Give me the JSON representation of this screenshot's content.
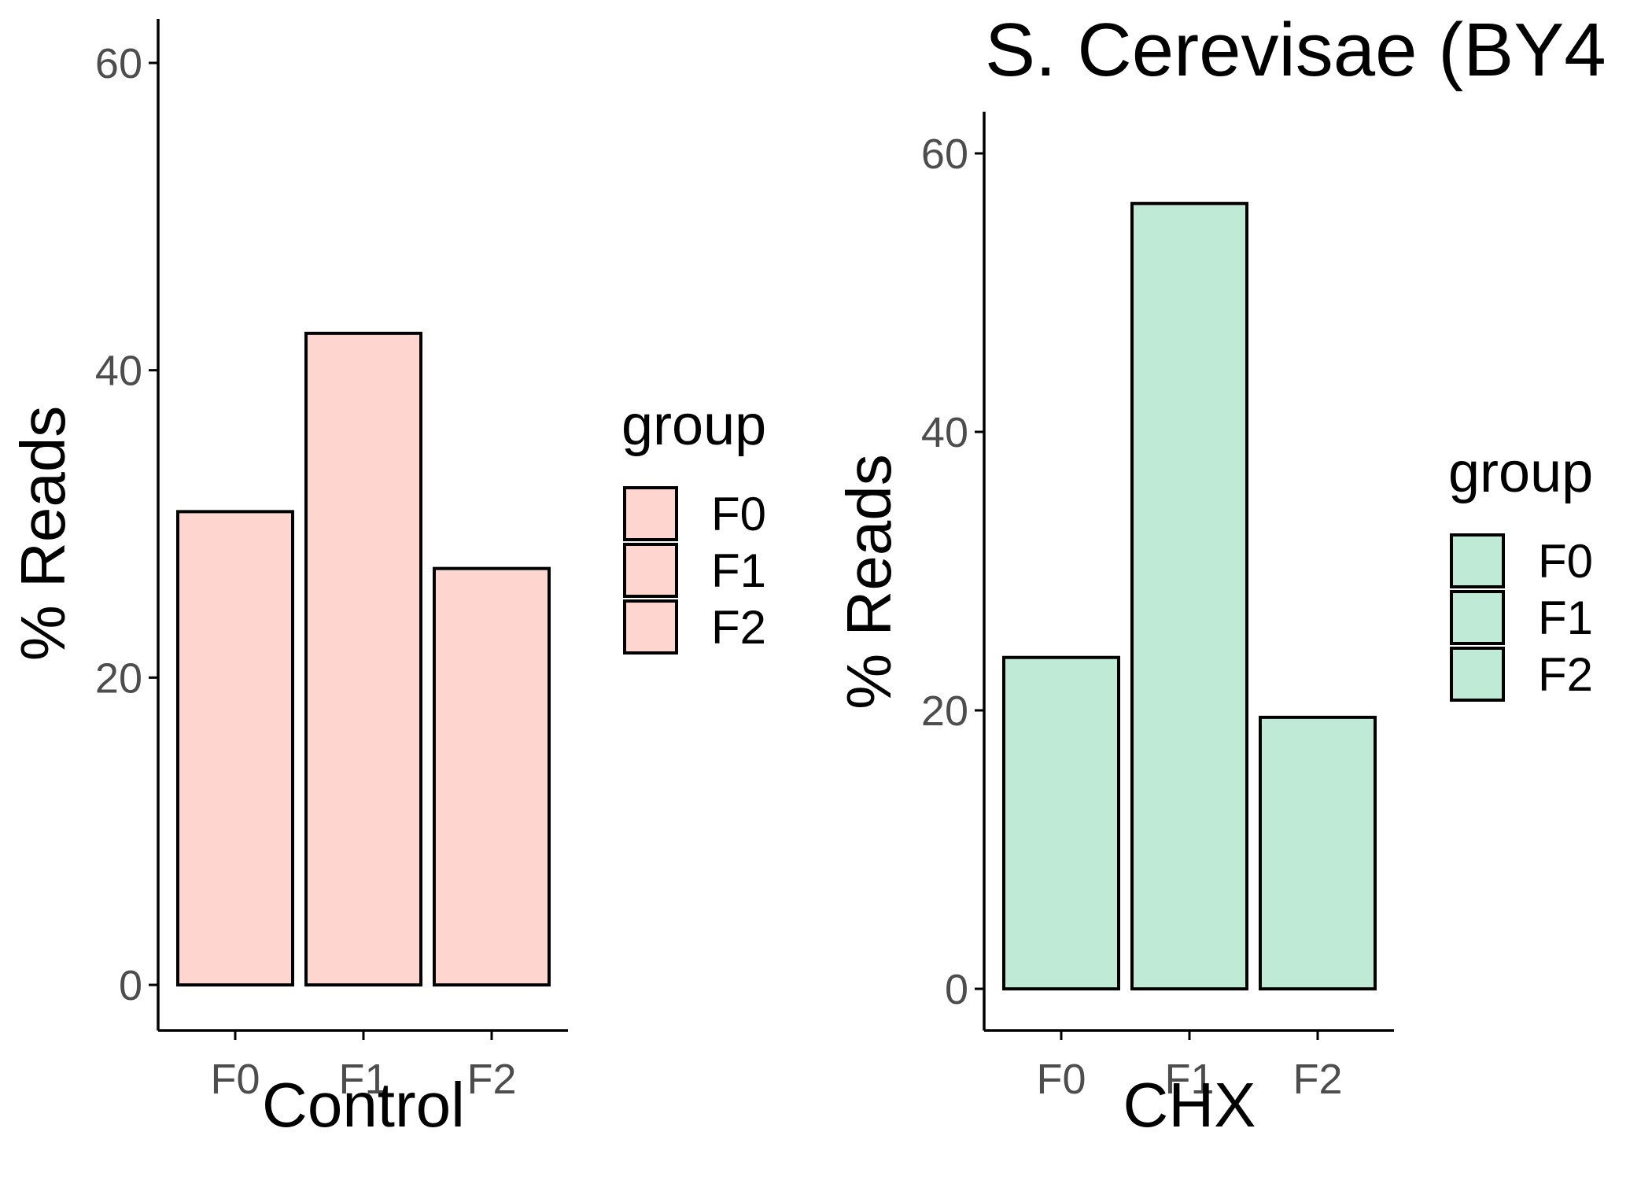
{
  "figure": {
    "title": "S. Cerevisae (BY4"
  },
  "chart_data": [
    {
      "type": "bar",
      "title": "",
      "xlabel": "Control",
      "ylabel": "% Reads",
      "categories": [
        "F0",
        "F1",
        "F2"
      ],
      "values": [
        30.8,
        42.4,
        27.1
      ],
      "ylim": [
        0,
        60
      ],
      "yticks": [
        "0",
        "20",
        "40",
        "60"
      ],
      "fill_color": "#ffd6cf",
      "grid": false,
      "legend": {
        "title": "group",
        "entries": [
          "F0",
          "F1",
          "F2"
        ],
        "placement": "right"
      }
    },
    {
      "type": "bar",
      "title": "",
      "xlabel": "CHX",
      "ylabel": "% Reads",
      "categories": [
        "F0",
        "F1",
        "F2"
      ],
      "values": [
        23.8,
        56.4,
        19.5
      ],
      "ylim": [
        0,
        60
      ],
      "yticks": [
        "0",
        "20",
        "40",
        "60"
      ],
      "fill_color": "#bfead6",
      "grid": false,
      "legend": {
        "title": "group",
        "entries": [
          "F0",
          "F1",
          "F2"
        ],
        "placement": "right"
      }
    }
  ]
}
